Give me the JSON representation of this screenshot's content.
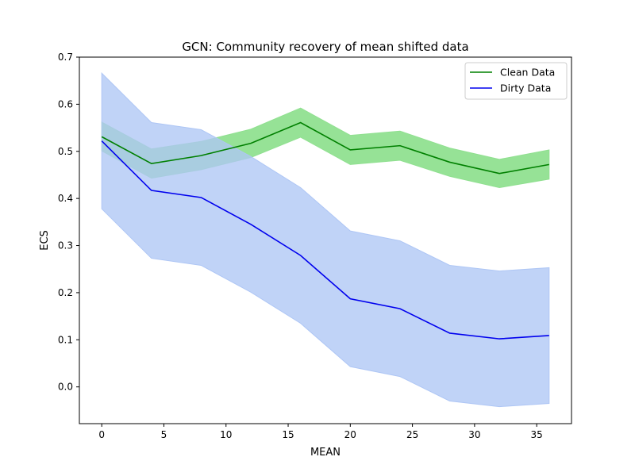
{
  "chart_data": {
    "type": "line",
    "title": "GCN: Community recovery of mean shifted data",
    "xlabel": "MEAN",
    "ylabel": "ECS",
    "xlim": [
      -1.8,
      37.8
    ],
    "ylim": [
      -0.078,
      0.7
    ],
    "x": [
      0,
      4,
      8,
      12,
      16,
      20,
      24,
      28,
      32,
      36
    ],
    "xticks": [
      0,
      5,
      10,
      15,
      20,
      25,
      30,
      35
    ],
    "xtick_labels": [
      "0",
      "5",
      "10",
      "15",
      "20",
      "25",
      "30",
      "35"
    ],
    "yticks": [
      0.0,
      0.1,
      0.2,
      0.3,
      0.4,
      0.5,
      0.6,
      0.7
    ],
    "ytick_labels": [
      "0.0",
      "0.1",
      "0.2",
      "0.3",
      "0.4",
      "0.5",
      "0.6",
      "0.7"
    ],
    "grid": false,
    "legend_position": "top-right",
    "series": [
      {
        "name": "Clean Data",
        "color": "#008000",
        "band_color": "#90e090",
        "values": [
          0.531,
          0.474,
          0.491,
          0.517,
          0.561,
          0.503,
          0.512,
          0.477,
          0.453,
          0.472
        ],
        "lower": [
          0.501,
          0.443,
          0.461,
          0.487,
          0.53,
          0.472,
          0.481,
          0.447,
          0.423,
          0.441
        ],
        "upper": [
          0.562,
          0.505,
          0.521,
          0.547,
          0.592,
          0.534,
          0.543,
          0.507,
          0.483,
          0.503
        ]
      },
      {
        "name": "Dirty Data",
        "color": "#0000ee",
        "band_color": "#aec6f5",
        "values": [
          0.522,
          0.417,
          0.402,
          0.345,
          0.279,
          0.187,
          0.166,
          0.114,
          0.102,
          0.109
        ],
        "lower": [
          0.378,
          0.273,
          0.258,
          0.201,
          0.135,
          0.043,
          0.022,
          -0.03,
          -0.042,
          -0.035
        ],
        "upper": [
          0.666,
          0.561,
          0.546,
          0.489,
          0.423,
          0.331,
          0.31,
          0.258,
          0.246,
          0.253
        ]
      }
    ]
  }
}
